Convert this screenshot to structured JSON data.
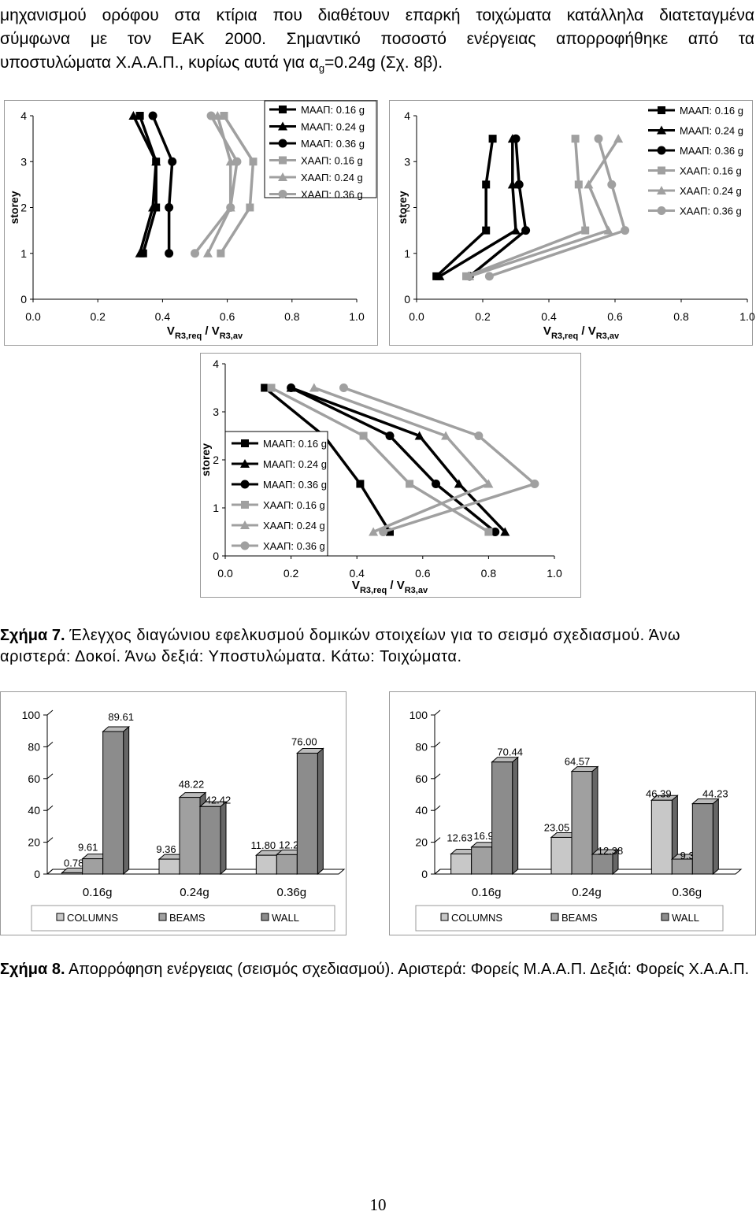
{
  "intro": {
    "line1": "μηχανισμού ορόφου στα κτίρια που διαθέτουν επαρκή τοιχώματα κατάλληλα διατεταγμένα",
    "line2": "σύμφωνα με τον ΕΑΚ 2000. Σημαντικό ποσοστό ενέργειας απορροφήθηκε από τα",
    "line3_a": "υποστυλώματα Χ.Α.Α.Π., κυρίως αυτά για α",
    "line3_sub": "g",
    "line3_b": "=0.24g (Σχ. 8β)."
  },
  "figure7": {
    "caption_label": "Σχήμα 7.",
    "caption_text": "Έλεγχος διαγώνιου εφελκυσμού δομικών στοιχείων για το σεισμό σχεδιασμού. Άνω αριστερά: Δοκοί. Άνω δεξιά: Υποστυλώματα. Κάτω: Τοιχώματα."
  },
  "figure8": {
    "caption_label": "Σχήμα 8.",
    "caption_text": "Απορρόφηση ενέργειας (σεισμός σχεδιασμού). Αριστερά: Φορείς Μ.Α.Α.Π. Δεξιά: Φορείς Χ.Α.Α.Π."
  },
  "page_number": "10",
  "colors": {
    "black": "#000000",
    "grey": "#a0a0a0",
    "bar_light": "#d4d4d4",
    "bar_dark": "#9a9a9a"
  },
  "chart_data": [
    {
      "id": "beams",
      "type": "line",
      "ylabel": "storey",
      "xlabel_main": "V",
      "xlabel_sub1": "R3,req",
      "xlabel_mid": " / V",
      "xlabel_sub2": "R3,av",
      "xlim": [
        0,
        1
      ],
      "ylim": [
        0,
        4
      ],
      "xticks": [
        "0.0",
        "0.2",
        "0.4",
        "0.6",
        "0.8",
        "1.0"
      ],
      "yticks": [
        "0",
        "1",
        "2",
        "3",
        "4"
      ],
      "legend_position": "top-right",
      "series": [
        {
          "name": "ΜΑΑΠ: 0.16 g",
          "color": "black",
          "marker": "square",
          "x": [
            0.34,
            0.38,
            0.38,
            0.33
          ],
          "y": [
            1,
            2,
            3,
            4
          ]
        },
        {
          "name": "ΜΑΑΠ: 0.24 g",
          "color": "black",
          "marker": "triangle",
          "x": [
            0.33,
            0.37,
            0.38,
            0.31
          ],
          "y": [
            1,
            2,
            3,
            4
          ]
        },
        {
          "name": "ΜΑΑΠ: 0.36 g",
          "color": "black",
          "marker": "circle",
          "x": [
            0.42,
            0.42,
            0.43,
            0.37
          ],
          "y": [
            1,
            2,
            3,
            4
          ]
        },
        {
          "name": "ΧΑΑΠ: 0.16 g",
          "color": "grey",
          "marker": "square",
          "x": [
            0.58,
            0.67,
            0.68,
            0.59
          ],
          "y": [
            1,
            2,
            3,
            4
          ]
        },
        {
          "name": "ΧΑΑΠ: 0.24 g",
          "color": "grey",
          "marker": "triangle",
          "x": [
            0.54,
            0.61,
            0.61,
            0.57
          ],
          "y": [
            1,
            2,
            3,
            4
          ]
        },
        {
          "name": "ΧΑΑΠ: 0.36 g",
          "color": "grey",
          "marker": "circle",
          "x": [
            0.5,
            0.61,
            0.63,
            0.55
          ],
          "y": [
            1,
            2,
            3,
            4
          ]
        }
      ]
    },
    {
      "id": "columns",
      "type": "line",
      "ylabel": "storey",
      "xlabel_main": "V",
      "xlabel_sub1": "R3,req",
      "xlabel_mid": " / V",
      "xlabel_sub2": "R3,av",
      "xlim": [
        0,
        1
      ],
      "ylim": [
        0,
        4
      ],
      "xticks": [
        "0.0",
        "0.2",
        "0.4",
        "0.6",
        "0.8",
        "1.0"
      ],
      "yticks": [
        "0",
        "1",
        "2",
        "3",
        "4"
      ],
      "legend_position": "top-right",
      "series": [
        {
          "name": "ΜΑΑΠ: 0.16 g",
          "color": "black",
          "marker": "square",
          "x": [
            0.06,
            0.21,
            0.21,
            0.23
          ],
          "y": [
            0.5,
            1.5,
            2.5,
            3.5
          ]
        },
        {
          "name": "ΜΑΑΠ: 0.24 g",
          "color": "black",
          "marker": "triangle",
          "x": [
            0.07,
            0.3,
            0.29,
            0.29
          ],
          "y": [
            0.5,
            1.5,
            2.5,
            3.5
          ]
        },
        {
          "name": "ΜΑΑΠ: 0.36 g",
          "color": "black",
          "marker": "circle",
          "x": [
            0.16,
            0.33,
            0.31,
            0.3
          ],
          "y": [
            0.5,
            1.5,
            2.5,
            3.5
          ]
        },
        {
          "name": "ΧΑΑΠ: 0.16 g",
          "color": "grey",
          "marker": "square",
          "x": [
            0.15,
            0.51,
            0.49,
            0.48
          ],
          "y": [
            0.5,
            1.5,
            2.5,
            3.5
          ]
        },
        {
          "name": "ΧΑΑΠ: 0.24 g",
          "color": "grey",
          "marker": "triangle",
          "x": [
            0.16,
            0.58,
            0.52,
            0.61
          ],
          "y": [
            0.5,
            1.5,
            2.5,
            3.5
          ]
        },
        {
          "name": "ΧΑΑΠ: 0.36 g",
          "color": "grey",
          "marker": "circle",
          "x": [
            0.22,
            0.63,
            0.59,
            0.55
          ],
          "y": [
            0.5,
            1.5,
            2.5,
            3.5
          ]
        }
      ]
    },
    {
      "id": "walls",
      "type": "line",
      "ylabel": "storey",
      "xlabel_main": "V",
      "xlabel_sub1": "R3,req",
      "xlabel_mid": " / V",
      "xlabel_sub2": "R3,av",
      "xlim": [
        0,
        1
      ],
      "ylim": [
        0,
        4
      ],
      "xticks": [
        "0.0",
        "0.2",
        "0.4",
        "0.6",
        "0.8",
        "1.0"
      ],
      "yticks": [
        "0",
        "1",
        "2",
        "3",
        "4"
      ],
      "legend_position": "left",
      "series": [
        {
          "name": "ΜΑΑΠ: 0.16 g",
          "color": "black",
          "marker": "square",
          "x": [
            0.5,
            0.41,
            0.3,
            0.12
          ],
          "y": [
            0.5,
            1.5,
            2.5,
            3.5
          ]
        },
        {
          "name": "ΜΑΑΠ: 0.24 g",
          "color": "black",
          "marker": "triangle",
          "x": [
            0.85,
            0.71,
            0.59,
            0.2
          ],
          "y": [
            0.5,
            1.5,
            2.5,
            3.5
          ]
        },
        {
          "name": "ΜΑΑΠ: 0.36 g",
          "color": "black",
          "marker": "circle",
          "x": [
            0.82,
            0.64,
            0.5,
            0.2
          ],
          "y": [
            0.5,
            1.5,
            2.5,
            3.5
          ]
        },
        {
          "name": "ΧΑΑΠ: 0.16 g",
          "color": "grey",
          "marker": "square",
          "x": [
            0.8,
            0.56,
            0.42,
            0.14
          ],
          "y": [
            0.5,
            1.5,
            2.5,
            3.5
          ]
        },
        {
          "name": "ΧΑΑΠ: 0.24 g",
          "color": "grey",
          "marker": "triangle",
          "x": [
            0.45,
            0.8,
            0.67,
            0.27
          ],
          "y": [
            0.5,
            1.5,
            2.5,
            3.5
          ]
        },
        {
          "name": "ΧΑΑΠ: 0.36 g",
          "color": "grey",
          "marker": "circle",
          "x": [
            0.48,
            0.94,
            0.77,
            0.36
          ],
          "y": [
            0.5,
            1.5,
            2.5,
            3.5
          ]
        }
      ]
    },
    {
      "id": "energy-maap",
      "type": "bar",
      "categories": [
        "0.16g",
        "0.24g",
        "0.36g"
      ],
      "ylim": [
        0,
        100
      ],
      "yticks": [
        "0",
        "20",
        "40",
        "60",
        "80",
        "100"
      ],
      "legend_position": "bottom",
      "series": [
        {
          "name": "COLUMNS",
          "values": [
            0.78,
            9.36,
            11.8
          ],
          "labels": [
            "0.78",
            "9.36",
            "11.80"
          ]
        },
        {
          "name": "BEAMS",
          "values": [
            9.61,
            48.22,
            12.2
          ],
          "labels": [
            "9.61",
            "48.22",
            "12.20"
          ]
        },
        {
          "name": "WALL",
          "values": [
            89.61,
            42.42,
            76.0
          ],
          "labels": [
            "89.61",
            "42.42",
            "76.00"
          ]
        }
      ]
    },
    {
      "id": "energy-xaap",
      "type": "bar",
      "categories": [
        "0.16g",
        "0.24g",
        "0.36g"
      ],
      "ylim": [
        0,
        100
      ],
      "yticks": [
        "0",
        "20",
        "40",
        "60",
        "80",
        "100"
      ],
      "legend_position": "bottom",
      "series": [
        {
          "name": "COLUMNS",
          "values": [
            12.63,
            23.05,
            46.39
          ],
          "labels": [
            "12.63",
            "23.05",
            "46.39"
          ]
        },
        {
          "name": "BEAMS",
          "values": [
            16.93,
            64.57,
            9.39
          ],
          "labels": [
            "16.93",
            "64.57",
            "9.39"
          ]
        },
        {
          "name": "WALL",
          "values": [
            70.44,
            12.38,
            44.23
          ],
          "labels": [
            "70.44",
            "12.38",
            "44.23"
          ]
        }
      ]
    }
  ]
}
